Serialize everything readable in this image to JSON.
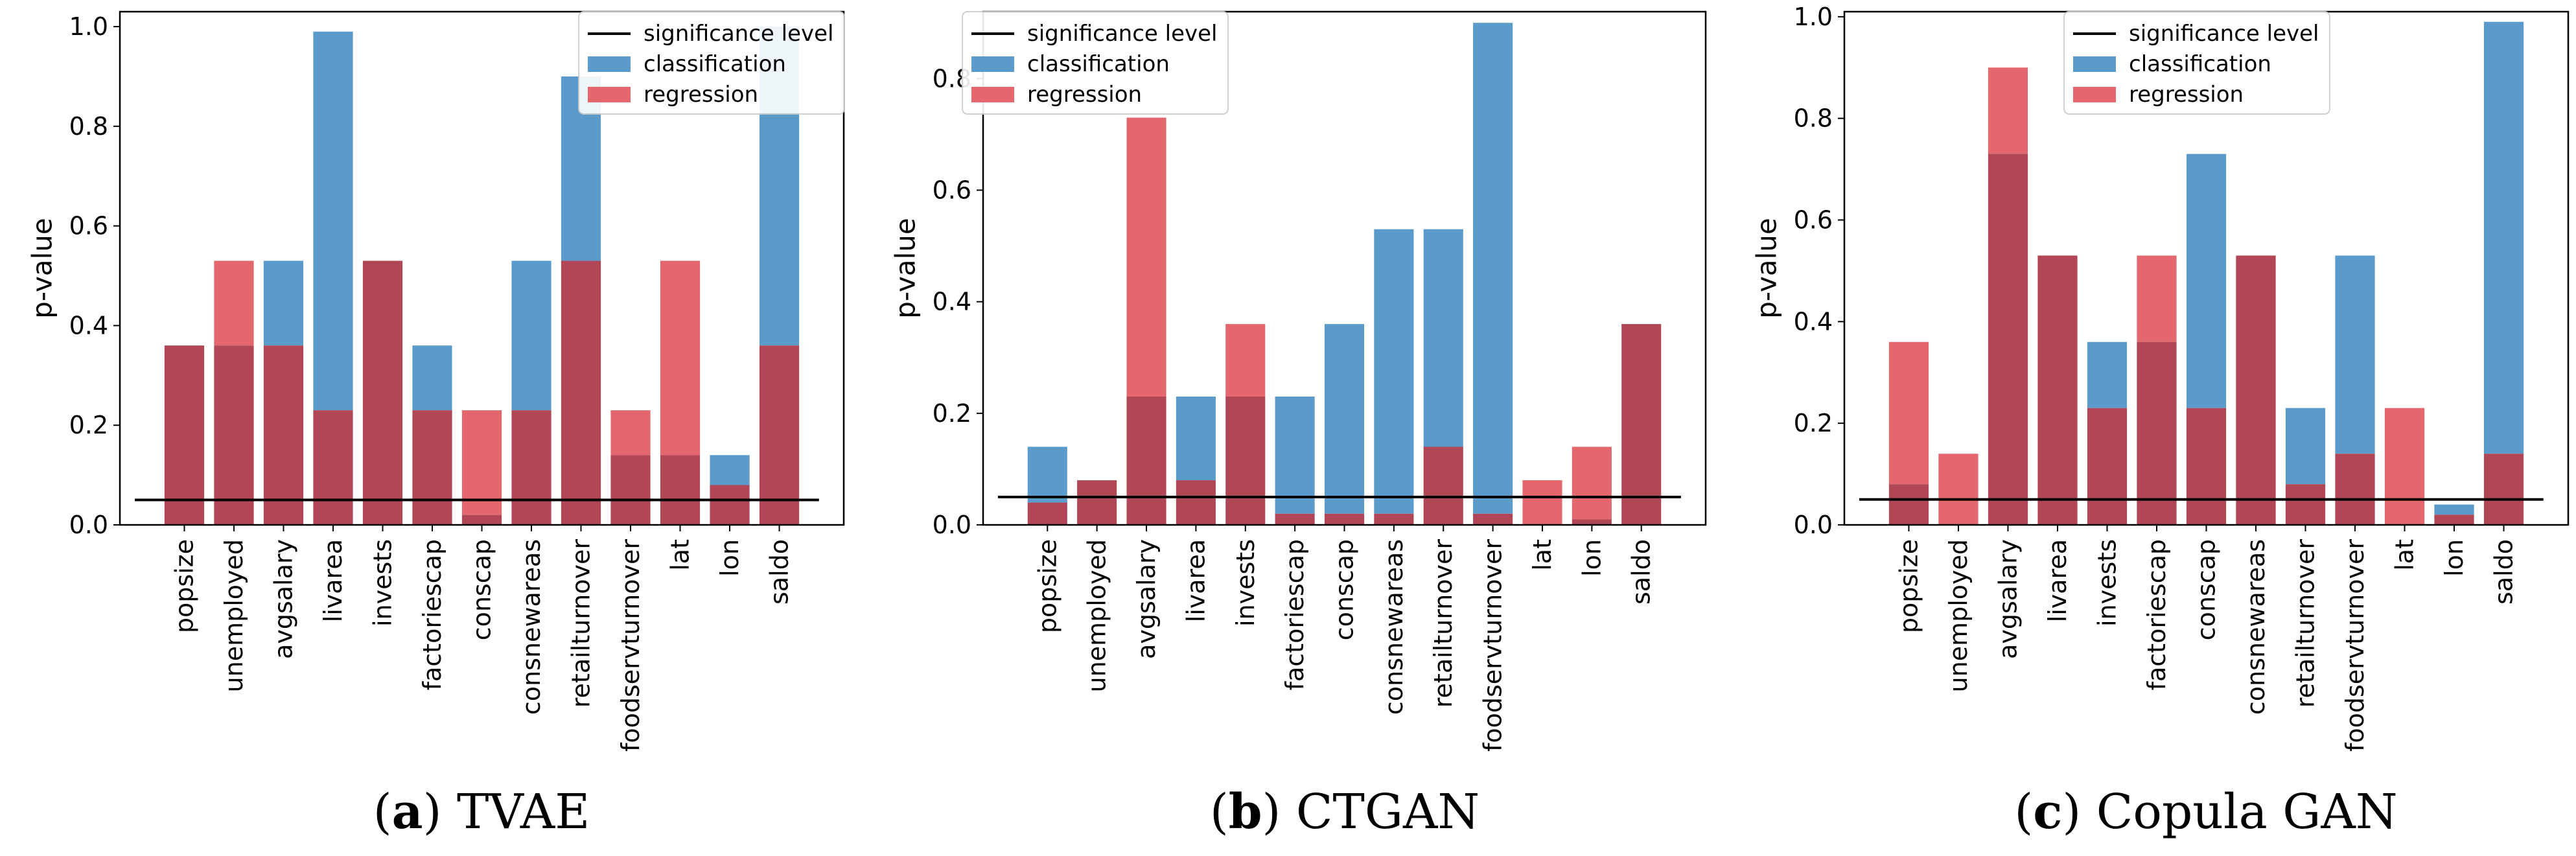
{
  "colors": {
    "classification": "#5B9BCB",
    "regression": "#E3676C",
    "overlap": "#B14657",
    "significance": "#000000",
    "frame": "#000000"
  },
  "legend": {
    "significance": "significance level",
    "classification": "classification",
    "regression": "regression"
  },
  "chart_data": [
    {
      "type": "bar",
      "caption_letter": "a",
      "caption_text": "TVAE",
      "ylabel": "p-value",
      "ylim": [
        0,
        1.03
      ],
      "yticks": [
        "0.0",
        "0.2",
        "0.4",
        "0.6",
        "0.8",
        "1.0"
      ],
      "ytick_values": [
        0,
        0.2,
        0.4,
        0.6,
        0.8,
        1.0
      ],
      "significance_level": 0.05,
      "legend_position": "top-right",
      "categories": [
        "popsize",
        "unemployed",
        "avgsalary",
        "livarea",
        "invests",
        "factoriescap",
        "conscap",
        "consnewareas",
        "retailturnover",
        "foodservturnover",
        "lat",
        "lon",
        "saldo"
      ],
      "series": [
        {
          "name": "classification",
          "values": [
            0.36,
            0.36,
            0.53,
            0.99,
            0.53,
            0.36,
            0.02,
            0.53,
            0.9,
            0.14,
            0.14,
            0.14,
            1.0
          ]
        },
        {
          "name": "regression",
          "values": [
            0.36,
            0.53,
            0.36,
            0.23,
            0.53,
            0.23,
            0.23,
            0.23,
            0.53,
            0.23,
            0.53,
            0.08,
            0.36
          ]
        }
      ]
    },
    {
      "type": "bar",
      "caption_letter": "b",
      "caption_text": "CTGAN",
      "ylabel": "p-value",
      "ylim": [
        0,
        0.92
      ],
      "yticks": [
        "0.0",
        "0.2",
        "0.4",
        "0.6",
        "0.8"
      ],
      "ytick_values": [
        0,
        0.2,
        0.4,
        0.6,
        0.8
      ],
      "significance_level": 0.05,
      "legend_position": "top-left",
      "categories": [
        "popsize",
        "unemployed",
        "avgsalary",
        "livarea",
        "invests",
        "factoriescap",
        "conscap",
        "consnewareas",
        "retailturnover",
        "foodservturnover",
        "lat",
        "lon",
        "saldo"
      ],
      "series": [
        {
          "name": "classification",
          "values": [
            0.14,
            0.08,
            0.23,
            0.23,
            0.23,
            0.23,
            0.36,
            0.53,
            0.53,
            0.9,
            0.0,
            0.01,
            0.36
          ]
        },
        {
          "name": "regression",
          "values": [
            0.04,
            0.08,
            0.73,
            0.08,
            0.36,
            0.02,
            0.02,
            0.02,
            0.14,
            0.02,
            0.08,
            0.14,
            0.36
          ]
        }
      ]
    },
    {
      "type": "bar",
      "caption_letter": "c",
      "caption_text": "Copula GAN",
      "ylabel": "p-value",
      "ylim": [
        0,
        1.01
      ],
      "yticks": [
        "0.0",
        "0.2",
        "0.4",
        "0.6",
        "0.8",
        "1.0"
      ],
      "ytick_values": [
        0,
        0.2,
        0.4,
        0.6,
        0.8,
        1.0
      ],
      "significance_level": 0.05,
      "legend_position": "top-center",
      "categories": [
        "popsize",
        "unemployed",
        "avgsalary",
        "livarea",
        "invests",
        "factoriescap",
        "conscap",
        "consnewareas",
        "retailturnover",
        "foodservturnover",
        "lat",
        "lon",
        "saldo"
      ],
      "series": [
        {
          "name": "classification",
          "values": [
            0.08,
            0.0,
            0.73,
            0.53,
            0.36,
            0.36,
            0.73,
            0.53,
            0.23,
            0.53,
            0.0,
            0.04,
            0.99
          ]
        },
        {
          "name": "regression",
          "values": [
            0.36,
            0.14,
            0.9,
            0.53,
            0.23,
            0.53,
            0.23,
            0.53,
            0.08,
            0.14,
            0.23,
            0.02,
            0.14
          ]
        }
      ]
    }
  ]
}
